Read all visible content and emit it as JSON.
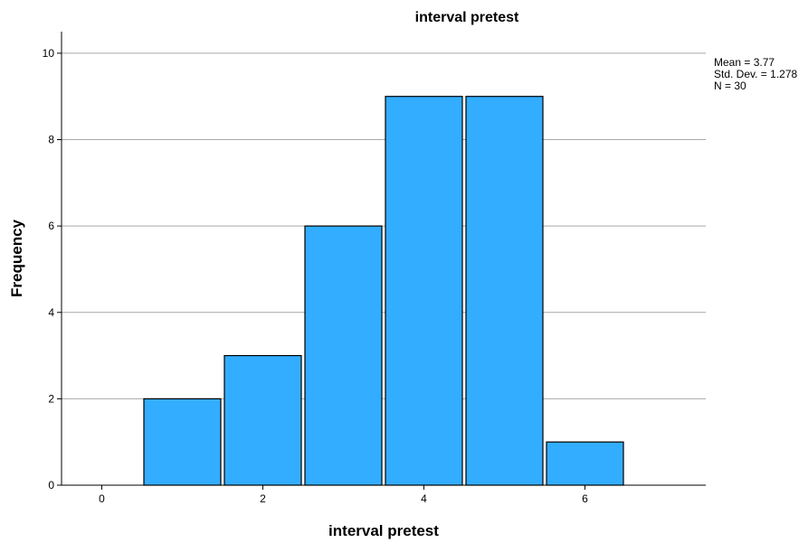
{
  "chart_data": {
    "type": "bar",
    "title": "interval pretest",
    "xlabel": "interval pretest",
    "ylabel": "Frequency",
    "x_ticks": [
      0,
      2,
      4,
      6
    ],
    "y_ticks": [
      0,
      2,
      4,
      6,
      8,
      10
    ],
    "xlim": [
      -0.5,
      7.5
    ],
    "ylim": [
      0,
      10.5
    ],
    "grid": true,
    "bar_color": "#33adff",
    "bins": [
      {
        "x": 1,
        "value": 2
      },
      {
        "x": 2,
        "value": 3
      },
      {
        "x": 3,
        "value": 6
      },
      {
        "x": 4,
        "value": 9
      },
      {
        "x": 5,
        "value": 9
      },
      {
        "x": 6,
        "value": 1
      }
    ],
    "stats": [
      "Mean = 3.77",
      "Std. Dev. = 1.278",
      "N = 30"
    ]
  }
}
